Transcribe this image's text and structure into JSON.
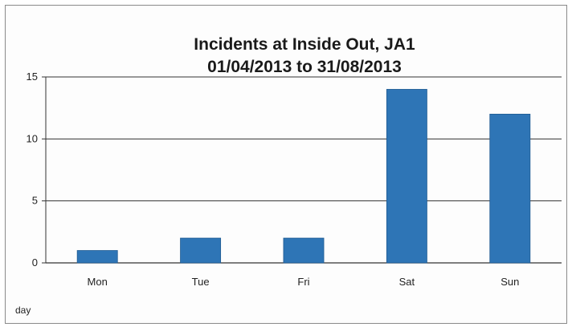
{
  "chart_data": {
    "type": "bar",
    "title_lines": [
      "Incidents at Inside Out, JA1",
      "01/04/2013 to 31/08/2013"
    ],
    "categories": [
      "Mon",
      "Tue",
      "Fri",
      "Sat",
      "Sun"
    ],
    "values": [
      1,
      2,
      2,
      14,
      12
    ],
    "ylim": [
      0,
      15
    ],
    "yticks": [
      0,
      5,
      10,
      15
    ],
    "grid": true,
    "legend": {
      "position": "bottom-left",
      "label": "day"
    },
    "colors": {
      "bar": "#2e75b6",
      "bar_edge": "#1f5a91",
      "grid": "#333333"
    }
  }
}
